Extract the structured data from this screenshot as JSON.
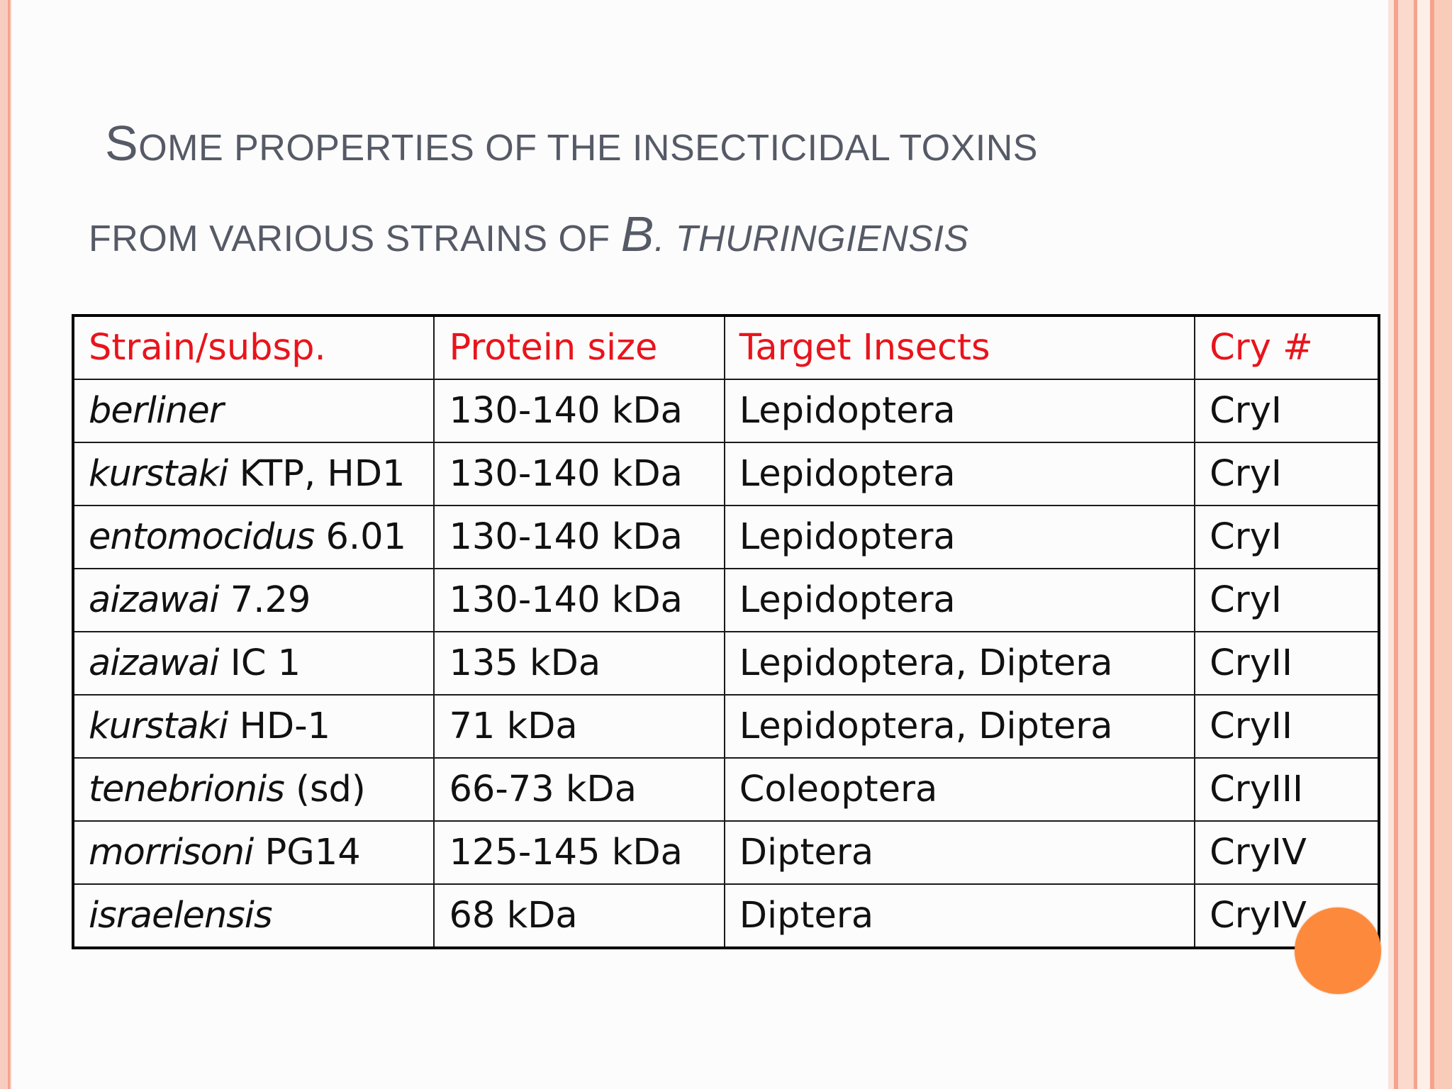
{
  "title": {
    "line1_first_letter": "S",
    "line1_rest": "OME PROPERTIES OF THE INSECTICIDAL TOXINS",
    "line2_prefix": "FROM VARIOUS STRAINS OF ",
    "line2_big_letter": "B",
    "line2_italic": ". THURINGIENSIS"
  },
  "table": {
    "headers": [
      "Strain/subsp.",
      "Protein size",
      "Target Insects",
      "Cry #"
    ],
    "rows": [
      {
        "strain_italic": "berliner",
        "strain_suffix": "",
        "protein_size": "130-140 kDa",
        "targets": "Lepidoptera",
        "cry": "CryI"
      },
      {
        "strain_italic": "kurstaki",
        "strain_suffix": " KTP, HD1",
        "protein_size": "130-140 kDa",
        "targets": "Lepidoptera",
        "cry": "CryI"
      },
      {
        "strain_italic": "entomocidus",
        "strain_suffix": " 6.01",
        "protein_size": "130-140 kDa",
        "targets": "Lepidoptera",
        "cry": "CryI"
      },
      {
        "strain_italic": "aizawai",
        "strain_suffix": " 7.29",
        "protein_size": "130-140 kDa",
        "targets": "Lepidoptera",
        "cry": "CryI"
      },
      {
        "strain_italic": "aizawai",
        "strain_suffix": " IC 1",
        "protein_size": "135 kDa",
        "targets": "Lepidoptera, Diptera",
        "cry": "CryII"
      },
      {
        "strain_italic": "kurstaki",
        "strain_suffix": " HD-1",
        "protein_size": "71 kDa",
        "targets": "Lepidoptera, Diptera",
        "cry": "CryII"
      },
      {
        "strain_italic": "tenebrionis",
        "strain_suffix": " (sd)",
        "protein_size": "66-73 kDa",
        "targets": "Coleoptera",
        "cry": "CryIII"
      },
      {
        "strain_italic": "morrisoni",
        "strain_suffix": " PG14",
        "protein_size": "125-145 kDa",
        "targets": "Diptera",
        "cry": "CryIV"
      },
      {
        "strain_italic": "israelensis",
        "strain_suffix": "",
        "protein_size": "68 kDa",
        "targets": "Diptera",
        "cry": "CryIV"
      }
    ]
  },
  "colors": {
    "header_text": "#e8141c",
    "title_text": "#555a66",
    "accent_dot": "#fd8a3c",
    "border_salmon": "#f4a48c"
  }
}
